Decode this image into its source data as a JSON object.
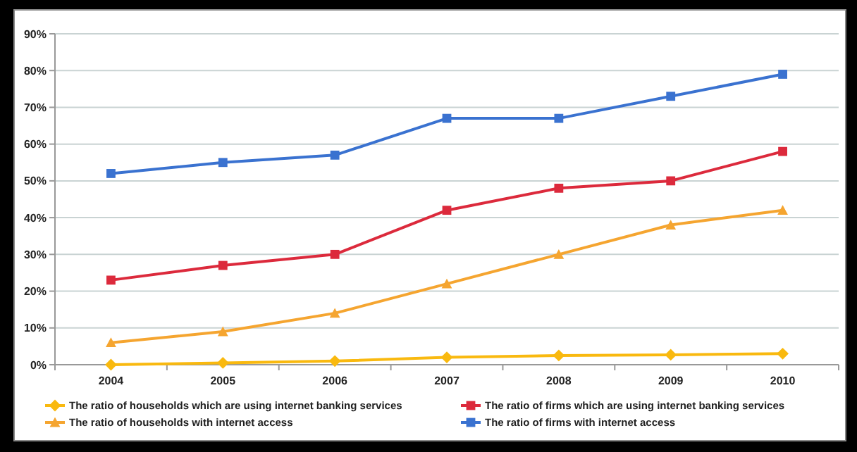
{
  "chart_data": {
    "type": "line",
    "categories": [
      "2004",
      "2005",
      "2006",
      "2007",
      "2008",
      "2009",
      "2010"
    ],
    "series": [
      {
        "name": "The ratio of households which are using internet banking services",
        "color": "#f9b90f",
        "marker": "diamond",
        "values": [
          0,
          0.5,
          1,
          2,
          2.5,
          2.7,
          3
        ]
      },
      {
        "name": "The ratio of firms which are using internet banking services",
        "color": "#dc2a3c",
        "marker": "square",
        "values": [
          23,
          27,
          30,
          42,
          48,
          50,
          58
        ]
      },
      {
        "name": "The ratio of households with internet access",
        "color": "#f5a530",
        "marker": "triangle",
        "values": [
          6,
          9,
          14,
          22,
          30,
          38,
          42
        ]
      },
      {
        "name": "The ratio of firms with internet access",
        "color": "#3a72d0",
        "marker": "square",
        "values": [
          52,
          55,
          57,
          67,
          67,
          73,
          79
        ]
      }
    ],
    "ylim": [
      0,
      90
    ],
    "yticks": [
      {
        "value": 0,
        "label": "0%"
      },
      {
        "value": 10,
        "label": "10%"
      },
      {
        "value": 20,
        "label": "20%"
      },
      {
        "value": 30,
        "label": "30%"
      },
      {
        "value": 40,
        "label": "40%"
      },
      {
        "value": 50,
        "label": "50%"
      },
      {
        "value": 60,
        "label": "60%"
      },
      {
        "value": 70,
        "label": "70%"
      },
      {
        "value": 80,
        "label": "80%"
      },
      {
        "value": 90,
        "label": "90%"
      }
    ],
    "grid": "y",
    "legend": "bottom",
    "line_style": "solid"
  }
}
